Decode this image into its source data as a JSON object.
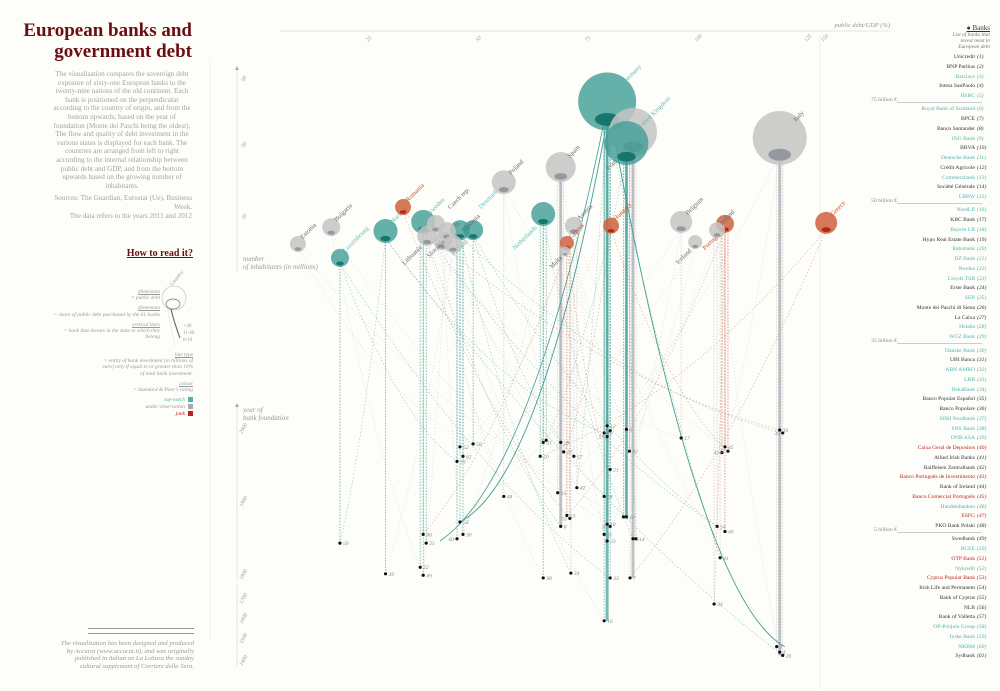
{
  "title": "European banks and government debt",
  "intro": "The visualisation compares the sovereign debt exposure of sixty-one European banks to the twenty-nine nations of the old continent. Each bank is positioned on the perpendicular according to the country of origin, and from the bottom upwards, based on the year of foundation (Monte dei Paschi being the oldest). The flow and quality of debt investment in the various states is displayed for each bank. The countries are arranged from left to right according to the internal relationship between public debt and GDP, and from the bottom upwards based on the growing number of inhabitants.",
  "sources": "Sources: The Guardian, Eurostat (Ue), Business Week.",
  "data_note": "The data refers to the years 2011 and 2012",
  "howto": {
    "title": "How to read it?",
    "country": "Country",
    "dim1_title": "dimension",
    "dim1_text": "= public debt",
    "dim2_title": "dimension",
    "dim2_text": "= share of public debt purchased by the 61 banks",
    "vlines_title": "vertical lines",
    "vlines_text": "= bank that invests in the state to which they belong",
    "line_marks": [
      "+40",
      "11-40",
      "0-10"
    ],
    "linetype_title": "line type",
    "linetype_text": "= entity of bank investment (in billions of euro) only if equal to or greater than 10% of total bank investment.",
    "colour_title": "colour",
    "colour_text": "= Standard & Poor's rating",
    "ratings": [
      {
        "label": "top-notch",
        "color": "#4fb3b0"
      },
      {
        "label": "under observation",
        "color": "#a9a9a9"
      },
      {
        "label": "junk",
        "color": "#c0201f"
      }
    ]
  },
  "credits": "The visualization has been designed and produced by Accurat (www.accurat.it), and was originally published in italian on La Lettura the sunday cultural supplement of Corriere della Sera.",
  "colors": {
    "top_notch": "#3e9c95",
    "under_observation": "#c4c4c4",
    "junk": "#cf6140",
    "title": "#6b0d12"
  },
  "chart_data": {
    "type": "scatter",
    "x_axis": {
      "label": "public debt/GDP (%)",
      "ticks": [
        25,
        50,
        75,
        100,
        125,
        150
      ]
    },
    "y_axis_top": {
      "label": "number of inhabitants (in millions)",
      "ticks": [
        10,
        50,
        90
      ]
    },
    "y_axis_bottom": {
      "label": "year of bank foundation",
      "ticks": [
        2000,
        1900,
        1800,
        1700,
        1600,
        1500,
        1400
      ]
    },
    "countries": [
      {
        "name": "Estonia",
        "debt_gdp": 9,
        "population": 5,
        "rating": "under_observation"
      },
      {
        "name": "Luxembourg",
        "debt_gdp": 18.6,
        "population": 2.1,
        "rating": "top_notch"
      },
      {
        "name": "Bulgaria",
        "debt_gdp": 16.6,
        "population": 8.5,
        "rating": "under_observation"
      },
      {
        "name": "Norway",
        "debt_gdp": 29,
        "population": 7.7,
        "rating": "top_notch"
      },
      {
        "name": "Romania",
        "debt_gdp": 33,
        "population": 17.2,
        "rating": "junk"
      },
      {
        "name": "Sweden",
        "debt_gdp": 37.6,
        "population": 9.6,
        "rating": "top_notch"
      },
      {
        "name": "Lithuania",
        "debt_gdp": 38.5,
        "population": 6.7,
        "rating": "under_observation"
      },
      {
        "name": "Czech rep.",
        "debt_gdp": 40.5,
        "population": 9.2,
        "rating": "under_observation"
      },
      {
        "name": "Latvia",
        "debt_gdp": 42,
        "population": 5.6,
        "rating": "under_observation"
      },
      {
        "name": "Slovakia",
        "debt_gdp": 43,
        "population": 7.7,
        "rating": "under_observation"
      },
      {
        "name": "Slovenia",
        "debt_gdp": 44.4,
        "population": 5,
        "rating": "under_observation"
      },
      {
        "name": "Denmark",
        "debt_gdp": 46,
        "population": 7.9,
        "rating": "top_notch"
      },
      {
        "name": "Finland",
        "debt_gdp": 49,
        "population": 7.9,
        "rating": "top_notch"
      },
      {
        "name": "Poland",
        "debt_gdp": 56,
        "population": 31,
        "rating": "under_observation"
      },
      {
        "name": "Netherlands",
        "debt_gdp": 65,
        "population": 13.3,
        "rating": "top_notch"
      },
      {
        "name": "Spain",
        "debt_gdp": 69,
        "population": 39.4,
        "rating": "under_observation"
      },
      {
        "name": "Malta",
        "debt_gdp": 70,
        "population": 3.5,
        "rating": "under_observation"
      },
      {
        "name": "Cyprus",
        "debt_gdp": 70.4,
        "population": 5.2,
        "rating": "junk"
      },
      {
        "name": "Austria",
        "debt_gdp": 72,
        "population": 8.8,
        "rating": "under_observation"
      },
      {
        "name": "Germany",
        "debt_gdp": 79.6,
        "population": 75.5,
        "rating": "top_notch"
      },
      {
        "name": "Hungary",
        "debt_gdp": 80.5,
        "population": 8.8,
        "rating": "junk"
      },
      {
        "name": "United Kingdom",
        "debt_gdp": 84,
        "population": 52.7,
        "rating": "top_notch"
      },
      {
        "name": "France",
        "debt_gdp": 85.5,
        "population": 58.8,
        "rating": "under_observation"
      },
      {
        "name": "Belgium",
        "debt_gdp": 96.5,
        "population": 9.6,
        "rating": "under_observation"
      },
      {
        "name": "Iceland",
        "debt_gdp": 99.7,
        "population": 5.4,
        "rating": "under_observation"
      },
      {
        "name": "Ireland",
        "debt_gdp": 104.7,
        "population": 7.9,
        "rating": "under_observation"
      },
      {
        "name": "Portugal",
        "debt_gdp": 106.5,
        "population": 9.2,
        "rating": "junk"
      },
      {
        "name": "Italy",
        "debt_gdp": 119,
        "population": 55.5,
        "rating": "under_observation"
      },
      {
        "name": "Greece",
        "debt_gdp": 161,
        "population": 9.4,
        "rating": "junk"
      }
    ],
    "bank_nodes": [
      {
        "bank": "50",
        "country": "Luxembourg",
        "founded": 1845
      },
      {
        "bank": "39",
        "country": "Norway",
        "founded": 1803
      },
      {
        "bank": "46",
        "country": "Sweden",
        "founded": 1857
      },
      {
        "bank": "25",
        "country": "Sweden",
        "founded": 1845
      },
      {
        "bank": "22",
        "country": "Sweden",
        "founded": 1812
      },
      {
        "bank": "49",
        "country": "Sweden",
        "founded": 1801
      },
      {
        "bank": "52",
        "country": "Denmark",
        "founded": 1977
      },
      {
        "bank": "62",
        "country": "Denmark",
        "founded": 1964
      },
      {
        "bank": "59",
        "country": "Denmark",
        "founded": 1957
      },
      {
        "bank": "56",
        "country": "Denmark",
        "founded": 1874
      },
      {
        "bank": "30",
        "country": "Denmark",
        "founded": 1857
      },
      {
        "bank": "60",
        "country": "Denmark",
        "founded": 1851
      },
      {
        "bank": "58",
        "country": "Finland",
        "founded": 1981
      },
      {
        "bank": "48",
        "country": "Poland",
        "founded": 1909
      },
      {
        "bank": "31",
        "country": "Netherlands",
        "founded": 1983
      },
      {
        "bank": "9",
        "country": "Netherlands",
        "founded": 1986
      },
      {
        "bank": "20",
        "country": "Netherlands",
        "founded": 1964
      },
      {
        "bank": "38",
        "country": "Netherlands",
        "founded": 1792
      },
      {
        "bank": "28",
        "country": "Spain",
        "founded": 1983
      },
      {
        "bank": "27",
        "country": "Spain",
        "founded": 1970
      },
      {
        "bank": "15",
        "country": "Spain",
        "founded": 1914
      },
      {
        "bank": "8",
        "country": "Spain",
        "founded": 1868
      },
      {
        "bank": "57",
        "country": "Austria",
        "founded": 1964
      },
      {
        "bank": "42",
        "country": "Austria",
        "founded": 1921
      },
      {
        "bank": "53",
        "country": "Cyprus",
        "founded": 1883
      },
      {
        "bank": "55",
        "country": "Cyprus",
        "founded": 1879
      },
      {
        "bank": "34",
        "country": "Austria",
        "founded": 1804
      },
      {
        "bank": "12",
        "country": "Germany",
        "founded": 2006
      },
      {
        "bank": "2",
        "country": "Germany",
        "founded": 1999
      },
      {
        "bank": "13",
        "country": "Germany",
        "founded": 1996
      },
      {
        "bank": "19",
        "country": "Germany",
        "founded": 1991
      },
      {
        "bank": "21",
        "country": "Germany",
        "founded": 1946
      },
      {
        "bank": "24",
        "country": "Germany",
        "founded": 1909
      },
      {
        "bank": "18",
        "country": "Germany",
        "founded": 1871
      },
      {
        "bank": "29",
        "country": "Germany",
        "founded": 1868
      },
      {
        "bank": "11",
        "country": "Germany",
        "founded": 1857
      },
      {
        "bank": "23",
        "country": "Germany",
        "founded": 1848
      },
      {
        "bank": "33",
        "country": "Germany",
        "founded": 1792
      },
      {
        "bank": "16",
        "country": "Germany",
        "founded": 1596
      },
      {
        "bank": "6",
        "country": "United Kingdom",
        "founded": 2001
      },
      {
        "bank": "32",
        "country": "United Kingdom",
        "founded": 1971
      },
      {
        "bank": "1",
        "country": "United Kingdom",
        "founded": 1881
      },
      {
        "bank": "10",
        "country": "United Kingdom",
        "founded": 1881
      },
      {
        "bank": "5",
        "country": "France",
        "founded": 1851
      },
      {
        "bank": "14",
        "country": "France",
        "founded": 1851
      },
      {
        "bank": "7",
        "country": "France",
        "founded": 1792
      },
      {
        "bank": "17",
        "country": "Belgium",
        "founded": 1989
      },
      {
        "bank": "45",
        "country": "Portugal",
        "founded": 1977
      },
      {
        "bank": "47",
        "country": "Portugal",
        "founded": 1971
      },
      {
        "bank": "43",
        "country": "Portugal",
        "founded": 1969
      },
      {
        "bank": "40",
        "country": "Portugal",
        "founded": 1861
      },
      {
        "bank": "54",
        "country": "Ireland",
        "founded": 1868
      },
      {
        "bank": "41",
        "country": "Ireland",
        "founded": 1825
      },
      {
        "bank": "44",
        "country": "Ireland",
        "founded": 1680
      },
      {
        "bank": "36",
        "country": "Italy",
        "founded": 2000
      },
      {
        "bank": "35",
        "country": "Italy",
        "founded": 1996
      },
      {
        "bank": "3",
        "country": "Italy",
        "founded": 1470
      },
      {
        "bank": "4",
        "country": "Italy",
        "founded": 1445
      },
      {
        "bank": "26",
        "country": "Italy",
        "founded": 1430
      }
    ]
  },
  "banklist": {
    "title": "Banks",
    "subtitle": "List of banks that invest most in European debt",
    "separators": {
      "5": "75 billion €",
      "15": "50 billion €",
      "29": "25 billion €",
      "48": "5 billion €"
    },
    "items": [
      {
        "name": "Unicredit",
        "num": "(1)",
        "rating": "under_observation"
      },
      {
        "name": "BNP Paribas",
        "num": "(2)",
        "rating": "under_observation"
      },
      {
        "name": "Barclays",
        "num": "(3)",
        "rating": "top_notch"
      },
      {
        "name": "Intesa SanPaolo",
        "num": "(4)",
        "rating": "under_observation"
      },
      {
        "name": "HSBC",
        "num": "(5)",
        "rating": "top_notch"
      },
      {
        "name": "Royal Bank of Scotland",
        "num": "(6)",
        "rating": "top_notch"
      },
      {
        "name": "BPCE",
        "num": "(7)",
        "rating": "under_observation"
      },
      {
        "name": "Banco Santander",
        "num": "(8)",
        "rating": "under_observation"
      },
      {
        "name": "ING Bank",
        "num": "(9)",
        "rating": "top_notch"
      },
      {
        "name": "BBVA",
        "num": "(10)",
        "rating": "under_observation"
      },
      {
        "name": "Deutsche Bank",
        "num": "(11)",
        "rating": "top_notch"
      },
      {
        "name": "Crédit Agricole",
        "num": "(12)",
        "rating": "under_observation"
      },
      {
        "name": "Commerzbank",
        "num": "(13)",
        "rating": "top_notch"
      },
      {
        "name": "Société Générale",
        "num": "(14)",
        "rating": "under_observation"
      },
      {
        "name": "LBBW",
        "num": "(15)",
        "rating": "top_notch"
      },
      {
        "name": "NordLB",
        "num": "(16)",
        "rating": "top_notch"
      },
      {
        "name": "KBC Bank",
        "num": "(17)",
        "rating": "under_observation"
      },
      {
        "name": "Bayern LB",
        "num": "(18)",
        "rating": "top_notch"
      },
      {
        "name": "Hypo Real Estate Bank",
        "num": "(19)",
        "rating": "under_observation"
      },
      {
        "name": "Rabobank",
        "num": "(20)",
        "rating": "top_notch"
      },
      {
        "name": "DZ Bank",
        "num": "(21)",
        "rating": "top_notch"
      },
      {
        "name": "Nordea",
        "num": "(22)",
        "rating": "top_notch"
      },
      {
        "name": "Lloyds TSB",
        "num": "(23)",
        "rating": "top_notch"
      },
      {
        "name": "Erste Bank",
        "num": "(24)",
        "rating": "under_observation"
      },
      {
        "name": "SEB",
        "num": "(25)",
        "rating": "top_notch"
      },
      {
        "name": "Monte dei Paschi di Siena",
        "num": "(26)",
        "rating": "under_observation"
      },
      {
        "name": "La Caixa",
        "num": "(27)",
        "rating": "under_observation"
      },
      {
        "name": "Helaba",
        "num": "(28)",
        "rating": "top_notch"
      },
      {
        "name": "WGZ Bank",
        "num": "(29)",
        "rating": "top_notch"
      },
      {
        "name": "Danske Bank",
        "num": "(30)",
        "rating": "top_notch"
      },
      {
        "name": "UBI Banca",
        "num": "(31)",
        "rating": "under_observation"
      },
      {
        "name": "ABN AMRO",
        "num": "(32)",
        "rating": "top_notch"
      },
      {
        "name": "LBB",
        "num": "(33)",
        "rating": "top_notch"
      },
      {
        "name": "DekaBank",
        "num": "(34)",
        "rating": "top_notch"
      },
      {
        "name": "Banco Popular Español",
        "num": "(35)",
        "rating": "under_observation"
      },
      {
        "name": "Banco Popolare",
        "num": "(36)",
        "rating": "under_observation"
      },
      {
        "name": "HSH Nordbank",
        "num": "(37)",
        "rating": "top_notch"
      },
      {
        "name": "SNS Bank",
        "num": "(38)",
        "rating": "top_notch"
      },
      {
        "name": "DNB ASA",
        "num": "(39)",
        "rating": "top_notch"
      },
      {
        "name": "Caixa Geral de Depositos",
        "num": "(40)",
        "rating": "junk"
      },
      {
        "name": "Allied Irish Banks",
        "num": "(41)",
        "rating": "under_observation"
      },
      {
        "name": "Raiffeisen Zentralbank",
        "num": "(42)",
        "rating": "under_observation"
      },
      {
        "name": "Banco Português de Investimento",
        "num": "(43)",
        "rating": "junk"
      },
      {
        "name": "Bank of Ireland",
        "num": "(44)",
        "rating": "under_observation"
      },
      {
        "name": "Banco Comercial Português",
        "num": "(45)",
        "rating": "junk"
      },
      {
        "name": "Handelsbanken",
        "num": "(46)",
        "rating": "top_notch"
      },
      {
        "name": "ESFG",
        "num": "(47)",
        "rating": "junk"
      },
      {
        "name": "PKO Bank Polski",
        "num": "(48)",
        "rating": "under_observation"
      },
      {
        "name": "Swedbank",
        "num": "(49)",
        "rating": "under_observation"
      },
      {
        "name": "BCEE",
        "num": "(50)",
        "rating": "top_notch"
      },
      {
        "name": "OTP Bank",
        "num": "(51)",
        "rating": "junk"
      },
      {
        "name": "Nykredit",
        "num": "(52)",
        "rating": "top_notch"
      },
      {
        "name": "Cyprus Popular Bank",
        "num": "(53)",
        "rating": "junk"
      },
      {
        "name": "Irish Life and Permanent",
        "num": "(54)",
        "rating": "under_observation"
      },
      {
        "name": "Bank of Cyprus",
        "num": "(55)",
        "rating": "under_observation"
      },
      {
        "name": "NLB",
        "num": "(56)",
        "rating": "under_observation"
      },
      {
        "name": "Bank of Valletta",
        "num": "(57)",
        "rating": "under_observation"
      },
      {
        "name": "OP-Pohjola Group",
        "num": "(58)",
        "rating": "top_notch"
      },
      {
        "name": "Jyske Bank",
        "num": "(59)",
        "rating": "top_notch"
      },
      {
        "name": "NKBM",
        "num": "(60)",
        "rating": "top_notch"
      },
      {
        "name": "Sydbank",
        "num": "(61)",
        "rating": "under_observation"
      }
    ]
  }
}
